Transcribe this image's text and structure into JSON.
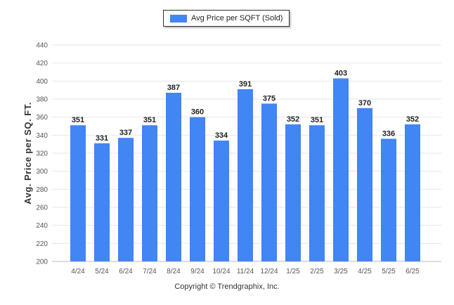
{
  "chart_data": {
    "type": "bar",
    "categories": [
      "4/24",
      "5/24",
      "6/24",
      "7/24",
      "8/24",
      "9/24",
      "10/24",
      "11/24",
      "12/24",
      "1/25",
      "2/25",
      "3/25",
      "4/25",
      "5/25",
      "6/25"
    ],
    "series": [
      {
        "name": "Avg Price per SQFT (Sold)",
        "values": [
          351,
          331,
          337,
          351,
          387,
          360,
          334,
          391,
          375,
          352,
          351,
          403,
          370,
          336,
          352
        ]
      }
    ],
    "ylabel": "Avg. Price per SQ. FT.",
    "ylim": [
      200,
      440
    ],
    "yticks": [
      200,
      220,
      240,
      260,
      280,
      300,
      320,
      340,
      360,
      380,
      400,
      420,
      440
    ],
    "grid": true,
    "legend": "top-center",
    "bar_color": "#4285f4",
    "credit": "Copyright © Trendgraphix, Inc."
  }
}
